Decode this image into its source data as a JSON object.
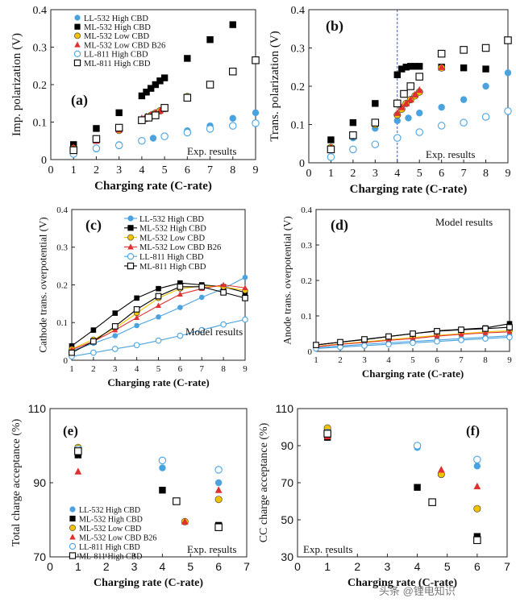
{
  "legend_text": {
    "ll532h": "LL-532 High CBD",
    "ml532h": "ML-532 High CBD",
    "ml532l": "ML-532 Low CBD",
    "ml532b": "ML-532 Low CBD B26",
    "ll811h": "LL-811 High CBD",
    "ml811h": "ML-811 High CBD"
  },
  "colors": {
    "ll532h": "#4aa3df",
    "ml532h": "#000000",
    "ml532l": "#f2c200",
    "ml532b": "#e03030",
    "ll811h": "#4aa3df",
    "ml811h": "#000000"
  },
  "watermark": "头条 @锂电知识",
  "chart_data": [
    {
      "panel": "(a)",
      "type": "scatter",
      "ylabel": "Imp. polarization (V)",
      "xlabel": "Charging rate (C-rate)",
      "xlim": [
        0,
        9
      ],
      "ylim": [
        0,
        0.4
      ],
      "xticks": [
        "0",
        "1",
        "2",
        "3",
        "4",
        "5",
        "6",
        "7",
        "8",
        "9"
      ],
      "yticks": [
        "0",
        "0.1",
        "0.2",
        "0.3",
        "0.4"
      ],
      "note": "Exp. results",
      "legend_pos": "top-left",
      "series": [
        {
          "key": "ll532h",
          "x": [
            1,
            2,
            3,
            4,
            4.5,
            5,
            6,
            7,
            8,
            9
          ],
          "y": [
            0.02,
            0.028,
            0.04,
            0.05,
            0.057,
            0.062,
            0.077,
            0.09,
            0.11,
            0.125
          ]
        },
        {
          "key": "ml532h",
          "x": [
            1,
            2,
            3,
            4,
            4.2,
            4.4,
            4.6,
            4.8,
            5,
            6,
            7,
            8
          ],
          "y": [
            0.04,
            0.083,
            0.125,
            0.17,
            0.18,
            0.19,
            0.2,
            0.21,
            0.218,
            0.27,
            0.32,
            0.36
          ]
        },
        {
          "key": "ml532l",
          "x": [
            1,
            2,
            3,
            4,
            4.2,
            4.4,
            4.6,
            4.8,
            5,
            6
          ],
          "y": [
            0.03,
            0.052,
            0.078,
            0.105,
            0.11,
            0.118,
            0.124,
            0.13,
            0.136,
            0.168
          ]
        },
        {
          "key": "ml532b",
          "x": [
            1,
            2,
            3,
            4,
            4.2,
            4.4,
            4.6,
            4.8,
            5,
            6
          ],
          "y": [
            0.032,
            0.05,
            0.08,
            0.11,
            0.115,
            0.12,
            0.125,
            0.13,
            0.135,
            0.165
          ]
        },
        {
          "key": "ll811h",
          "x": [
            1,
            2,
            3,
            4,
            5,
            6,
            7,
            8,
            9
          ],
          "y": [
            0.015,
            0.03,
            0.038,
            0.05,
            0.062,
            0.072,
            0.082,
            0.09,
            0.097
          ]
        },
        {
          "key": "ml811h",
          "x": [
            1,
            2,
            3,
            4,
            4.3,
            4.6,
            5,
            6,
            7,
            8,
            9
          ],
          "y": [
            0.025,
            0.055,
            0.085,
            0.105,
            0.112,
            0.118,
            0.138,
            0.165,
            0.2,
            0.235,
            0.265
          ]
        }
      ]
    },
    {
      "panel": "(b)",
      "type": "scatter",
      "ylabel": "Trans. polarization (V)",
      "xlabel": "Charging rate (C-rate)",
      "xlim": [
        0,
        9
      ],
      "ylim": [
        0,
        0.4
      ],
      "xticks": [
        "0",
        "1",
        "2",
        "3",
        "4",
        "5",
        "6",
        "7",
        "8",
        "9"
      ],
      "yticks": [
        "0",
        "0.1",
        "0.2",
        "0.3",
        "0.4"
      ],
      "note": "Exp. results",
      "vline": 4,
      "series": [
        {
          "key": "ll532h",
          "x": [
            1,
            2,
            3,
            4,
            4.5,
            5,
            6,
            7,
            8,
            9
          ],
          "y": [
            0.035,
            0.065,
            0.09,
            0.11,
            0.117,
            0.13,
            0.145,
            0.165,
            0.2,
            0.235
          ]
        },
        {
          "key": "ml532h",
          "x": [
            1,
            2,
            3,
            4,
            4.2,
            4.4,
            4.6,
            4.8,
            5,
            6,
            7,
            8
          ],
          "y": [
            0.06,
            0.105,
            0.155,
            0.23,
            0.245,
            0.25,
            0.252,
            0.252,
            0.252,
            0.25,
            0.248,
            0.245
          ]
        },
        {
          "key": "ml532l",
          "x": [
            1,
            2,
            3,
            4,
            4.2,
            4.4,
            4.6,
            4.8,
            5,
            6
          ],
          "y": [
            0.04,
            0.07,
            0.1,
            0.125,
            0.14,
            0.155,
            0.165,
            0.175,
            0.185,
            0.248
          ]
        },
        {
          "key": "ml532b",
          "x": [
            1,
            2,
            3,
            4,
            4.2,
            4.4,
            4.6,
            4.8,
            5,
            6
          ],
          "y": [
            0.04,
            0.07,
            0.105,
            0.13,
            0.145,
            0.155,
            0.165,
            0.178,
            0.19,
            0.25
          ]
        },
        {
          "key": "ll811h",
          "x": [
            1,
            2,
            3,
            4,
            5,
            6,
            7,
            8,
            9
          ],
          "y": [
            0.015,
            0.035,
            0.048,
            0.065,
            0.08,
            0.097,
            0.105,
            0.12,
            0.135
          ]
        },
        {
          "key": "ml811h",
          "x": [
            1,
            2,
            3,
            4,
            4.3,
            4.6,
            5,
            6,
            7,
            8,
            9
          ],
          "y": [
            0.035,
            0.072,
            0.105,
            0.155,
            0.18,
            0.2,
            0.225,
            0.285,
            0.295,
            0.3,
            0.32
          ]
        }
      ]
    },
    {
      "panel": "(c)",
      "type": "line",
      "ylabel": "Cathode trans. overpotential (V)",
      "xlabel": "Charging rate (C-rate)",
      "xlim": [
        1,
        9
      ],
      "ylim": [
        0,
        0.4
      ],
      "xticks": [
        "1",
        "2",
        "3",
        "4",
        "5",
        "6",
        "7",
        "8",
        "9"
      ],
      "yticks": [
        "0",
        "0.1",
        "0.2",
        "0.3",
        "0.4"
      ],
      "note": "Model results",
      "series": [
        {
          "key": "ll532h",
          "x": [
            1,
            2,
            3,
            4,
            5,
            6,
            7,
            8,
            9
          ],
          "y": [
            0.025,
            0.045,
            0.065,
            0.092,
            0.115,
            0.14,
            0.167,
            0.19,
            0.22
          ]
        },
        {
          "key": "ml532h",
          "x": [
            1,
            2,
            3,
            4,
            5,
            6,
            7,
            8,
            9
          ],
          "y": [
            0.038,
            0.08,
            0.125,
            0.165,
            0.19,
            0.205,
            0.2,
            0.195,
            0.18
          ]
        },
        {
          "key": "ml532l",
          "x": [
            1,
            2,
            3,
            4,
            5,
            6,
            7,
            8,
            9
          ],
          "y": [
            0.03,
            0.055,
            0.085,
            0.125,
            0.165,
            0.19,
            0.197,
            0.195,
            0.185
          ]
        },
        {
          "key": "ml532b",
          "x": [
            1,
            2,
            3,
            4,
            5,
            6,
            7,
            8,
            9
          ],
          "y": [
            0.028,
            0.05,
            0.08,
            0.113,
            0.145,
            0.175,
            0.19,
            0.2,
            0.192
          ]
        },
        {
          "key": "ll811h",
          "x": [
            1,
            2,
            3,
            4,
            5,
            6,
            7,
            8,
            9
          ],
          "y": [
            0.01,
            0.02,
            0.03,
            0.04,
            0.052,
            0.065,
            0.08,
            0.095,
            0.108
          ]
        },
        {
          "key": "ml811h",
          "x": [
            1,
            2,
            3,
            4,
            5,
            6,
            7,
            8,
            9
          ],
          "y": [
            0.02,
            0.05,
            0.09,
            0.135,
            0.17,
            0.195,
            0.195,
            0.18,
            0.165
          ]
        }
      ]
    },
    {
      "panel": "(d)",
      "type": "line",
      "ylabel": "Anode trans. overpotential (V)",
      "xlabel": "Charging rate (C-rate)",
      "xlim": [
        1,
        9
      ],
      "ylim": [
        0,
        0.4
      ],
      "xticks": [
        "1",
        "2",
        "3",
        "4",
        "5",
        "6",
        "7",
        "8",
        "9"
      ],
      "yticks": [
        "0",
        "0.1",
        "0.2",
        "0.3",
        "0.4"
      ],
      "note": "Model results",
      "series": [
        {
          "key": "ll532h",
          "x": [
            1,
            2,
            3,
            4,
            5,
            6,
            7,
            8,
            9
          ],
          "y": [
            0.01,
            0.015,
            0.02,
            0.024,
            0.028,
            0.032,
            0.036,
            0.04,
            0.044
          ]
        },
        {
          "key": "ml532h",
          "x": [
            1,
            2,
            3,
            4,
            5,
            6,
            7,
            8,
            9
          ],
          "y": [
            0.018,
            0.026,
            0.033,
            0.042,
            0.05,
            0.058,
            0.062,
            0.066,
            0.078
          ]
        },
        {
          "key": "ml532l",
          "x": [
            1,
            2,
            3,
            4,
            5,
            6,
            7,
            8,
            9
          ],
          "y": [
            0.014,
            0.021,
            0.027,
            0.033,
            0.039,
            0.045,
            0.05,
            0.055,
            0.058
          ]
        },
        {
          "key": "ml532b",
          "x": [
            1,
            2,
            3,
            4,
            5,
            6,
            7,
            8,
            9
          ],
          "y": [
            0.013,
            0.02,
            0.025,
            0.031,
            0.036,
            0.043,
            0.048,
            0.052,
            0.055
          ]
        },
        {
          "key": "ll811h",
          "x": [
            1,
            2,
            3,
            4,
            5,
            6,
            7,
            8,
            9
          ],
          "y": [
            0.008,
            0.012,
            0.016,
            0.02,
            0.024,
            0.028,
            0.032,
            0.036,
            0.04
          ]
        },
        {
          "key": "ml811h",
          "x": [
            1,
            2,
            3,
            4,
            5,
            6,
            7,
            8,
            9
          ],
          "y": [
            0.018,
            0.026,
            0.034,
            0.042,
            0.05,
            0.057,
            0.061,
            0.064,
            0.068
          ]
        }
      ]
    },
    {
      "panel": "(e)",
      "type": "scatter",
      "ylabel": "Total charge acceptance (%)",
      "xlabel": "Charging rate (C-rate)",
      "xlim": [
        0,
        7
      ],
      "ylim": [
        70,
        110
      ],
      "xticks": [
        "0",
        "1",
        "2",
        "3",
        "4",
        "5",
        "6",
        "7"
      ],
      "yticks": [
        "70",
        "90",
        "110"
      ],
      "note": "Exp. results",
      "legend_pos": "bottom-left",
      "series": [
        {
          "key": "ll532h",
          "x": [
            1,
            4,
            6
          ],
          "y": [
            98,
            94,
            90
          ]
        },
        {
          "key": "ml532h",
          "x": [
            1,
            4,
            6
          ],
          "y": [
            97.5,
            88,
            78.5
          ]
        },
        {
          "key": "ml532l",
          "x": [
            1,
            4.8,
            6
          ],
          "y": [
            99.5,
            79.5,
            85.5
          ]
        },
        {
          "key": "ml532b",
          "x": [
            1,
            4.8,
            6
          ],
          "y": [
            93,
            79.5,
            88
          ]
        },
        {
          "key": "ll811h",
          "x": [
            1,
            4,
            6
          ],
          "y": [
            99,
            96,
            93.5
          ]
        },
        {
          "key": "ml811h",
          "x": [
            1,
            4.5,
            6
          ],
          "y": [
            98.5,
            85,
            78
          ]
        }
      ]
    },
    {
      "panel": "(f)",
      "type": "scatter",
      "ylabel": "CC charge acceptance (%)",
      "xlabel": "Charging rate (C-rate)",
      "xlim": [
        0,
        7
      ],
      "ylim": [
        30,
        110
      ],
      "xticks": [
        "0",
        "1",
        "2",
        "3",
        "4",
        "5",
        "6",
        "7"
      ],
      "yticks": [
        "30",
        "50",
        "70",
        "90",
        "110"
      ],
      "note": "Exp. results",
      "series": [
        {
          "key": "ll532h",
          "x": [
            1,
            4,
            6
          ],
          "y": [
            96,
            89,
            79
          ]
        },
        {
          "key": "ml532h",
          "x": [
            1,
            4,
            6
          ],
          "y": [
            94.5,
            67.5,
            41
          ]
        },
        {
          "key": "ml532l",
          "x": [
            1,
            4.8,
            6
          ],
          "y": [
            99.5,
            74.5,
            56
          ]
        },
        {
          "key": "ml532b",
          "x": [
            1,
            4.8,
            6
          ],
          "y": [
            95,
            77,
            68
          ]
        },
        {
          "key": "ll811h",
          "x": [
            1,
            4,
            6
          ],
          "y": [
            97,
            90,
            82.5
          ]
        },
        {
          "key": "ml811h",
          "x": [
            1,
            4.5,
            6
          ],
          "y": [
            96.5,
            59.5,
            39
          ]
        }
      ]
    }
  ]
}
